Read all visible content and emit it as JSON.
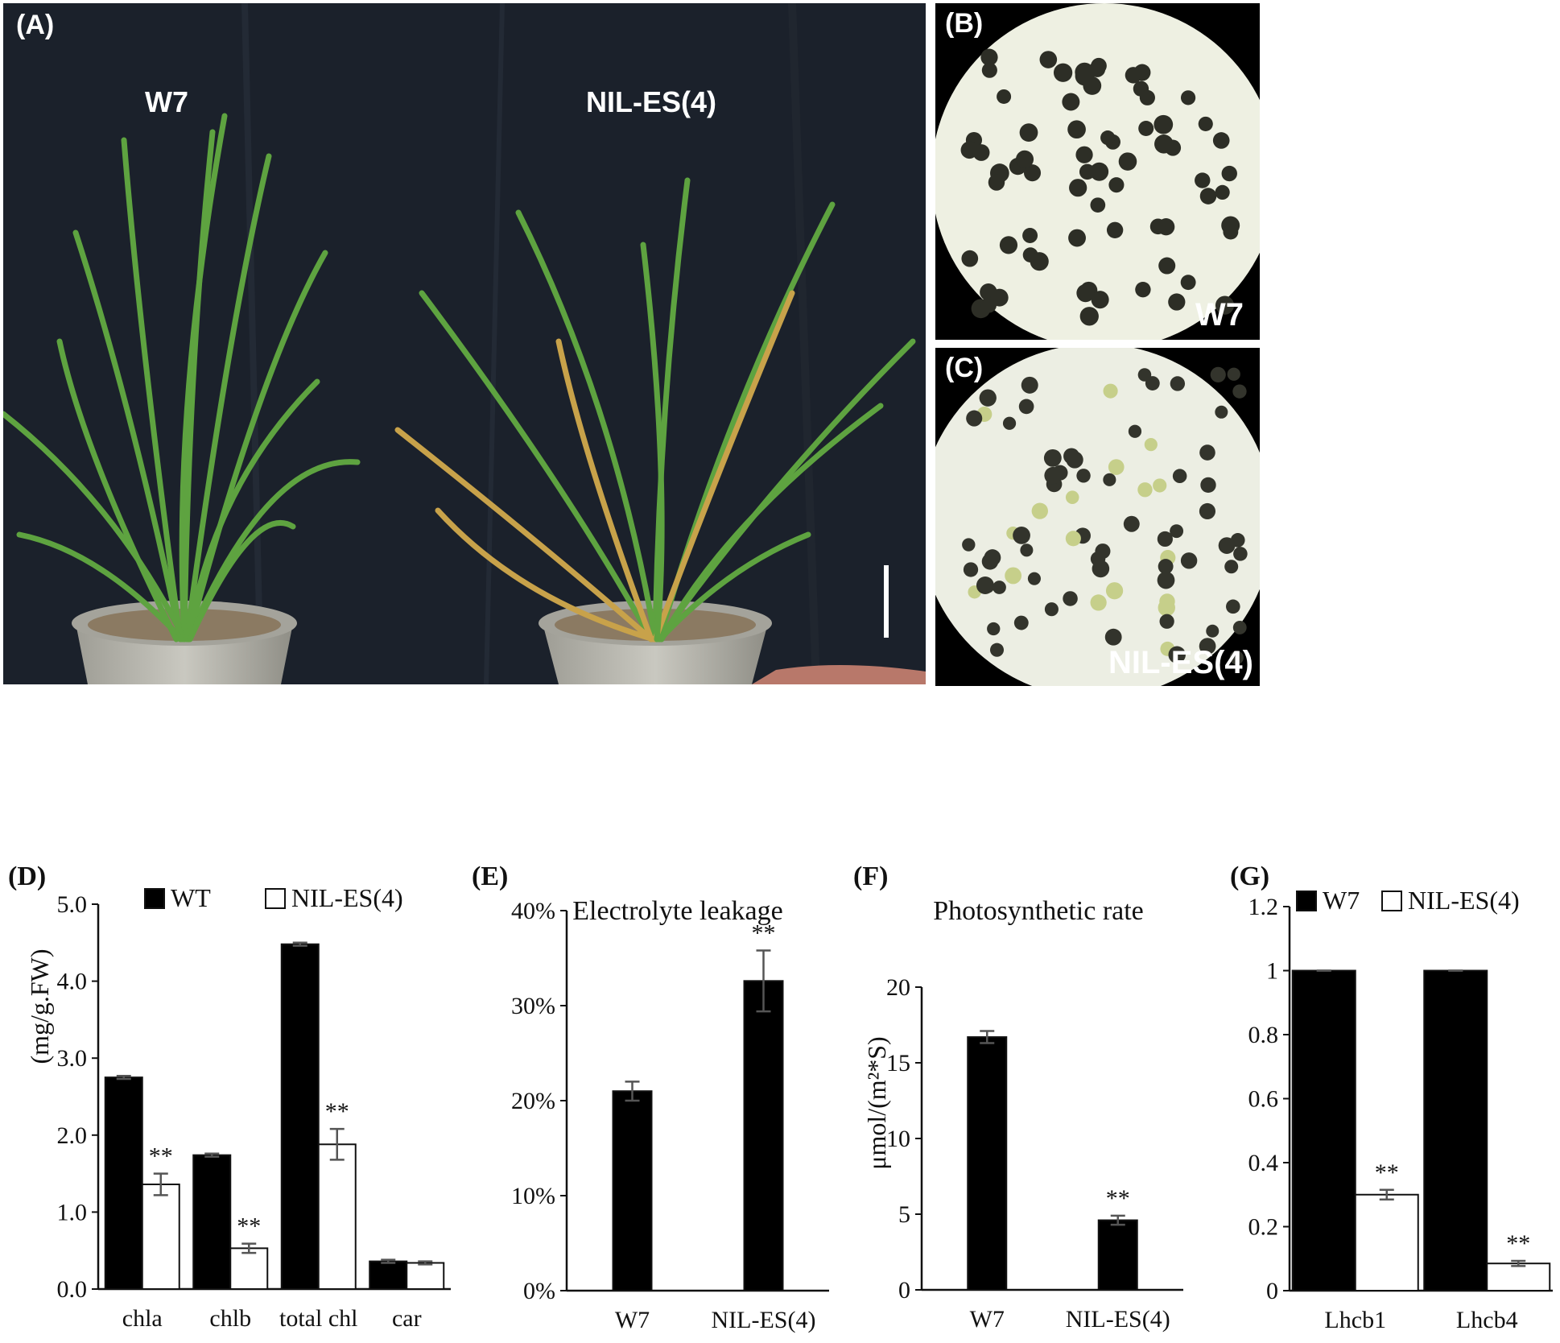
{
  "photo_panels": {
    "A": {
      "letter": "(A)",
      "left_plant_label": "W7",
      "right_plant_label": "NIL-ES(4)"
    },
    "B": {
      "letter": "(B)",
      "label": "W7"
    },
    "C": {
      "letter": "(C)",
      "label": "NIL-ES(4)"
    }
  },
  "colors": {
    "bar_dark": "#000000",
    "bar_light": "#ffffff",
    "photo_background": "#1b212b",
    "leaf_green": "#5ea340",
    "leaf_yellow": "#c8a24a",
    "pot": "#b8b7ae",
    "micro_bg": "#eef0e2",
    "micro_dot": "#2d2e26"
  },
  "chart_data": [
    {
      "panel": "(D)",
      "type": "bar",
      "title": "",
      "ylabel": "(mg/g.FW)",
      "ylim": [
        0,
        5
      ],
      "yticks": [
        "0.0",
        "1.0",
        "2.0",
        "3.0",
        "4.0",
        "5.0"
      ],
      "categories": [
        "chla",
        "chlb",
        "total chl",
        "car"
      ],
      "legend": [
        "WT",
        "NIL-ES(4)"
      ],
      "legend_position": "top",
      "series": [
        {
          "name": "WT",
          "color": "#000000",
          "values": [
            2.75,
            1.74,
            4.48,
            0.36
          ],
          "errors": [
            0.02,
            0.02,
            0.02,
            0.02
          ]
        },
        {
          "name": "NIL-ES(4)",
          "color": "#ffffff",
          "values": [
            1.36,
            0.53,
            1.88,
            0.34
          ],
          "errors": [
            0.14,
            0.06,
            0.2,
            0.02
          ]
        }
      ],
      "annotations": [
        "",
        "**"
      ],
      "annotation_map": [
        [
          false,
          true
        ],
        [
          false,
          true
        ],
        [
          false,
          true
        ],
        [
          false,
          false
        ]
      ]
    },
    {
      "panel": "(E)",
      "type": "bar",
      "title": "Electrolyte leakage",
      "ylabel": "",
      "ylim": [
        0,
        40
      ],
      "yticks": [
        "0%",
        "10%",
        "20%",
        "30%",
        "40%"
      ],
      "categories": [
        "W7",
        "NIL-ES(4)"
      ],
      "values": [
        21.0,
        32.6
      ],
      "errors": [
        1.0,
        3.2
      ],
      "annotations": [
        "",
        "**"
      ]
    },
    {
      "panel": "(F)",
      "type": "bar",
      "title": "Photosynthetic rate",
      "ylabel": "μmol/(m²*S)",
      "ylim": [
        0,
        20
      ],
      "yticks": [
        "0",
        "5",
        "10",
        "15",
        "20"
      ],
      "categories": [
        "W7",
        "NIL-ES(4)"
      ],
      "values": [
        16.7,
        4.6
      ],
      "errors": [
        0.4,
        0.3
      ],
      "annotations": [
        "",
        "**"
      ]
    },
    {
      "panel": "(G)",
      "type": "bar",
      "title": "",
      "ylabel": "",
      "ylim": [
        0,
        1.2
      ],
      "yticks": [
        "0",
        "0.2",
        "0.4",
        "0.6",
        "0.8",
        "1",
        "1.2"
      ],
      "categories": [
        "Lhcb1",
        "Lhcb4"
      ],
      "legend": [
        "W7",
        "NIL-ES(4)"
      ],
      "legend_position": "top",
      "series": [
        {
          "name": "W7",
          "color": "#000000",
          "values": [
            1.0,
            1.0
          ],
          "errors": [
            0.0,
            0.0
          ]
        },
        {
          "name": "NIL-ES(4)",
          "color": "#ffffff",
          "values": [
            0.3,
            0.085
          ],
          "errors": [
            0.015,
            0.008
          ]
        }
      ],
      "annotations": [
        "",
        "**"
      ],
      "annotation_map": [
        [
          false,
          true
        ],
        [
          false,
          true
        ]
      ]
    }
  ]
}
